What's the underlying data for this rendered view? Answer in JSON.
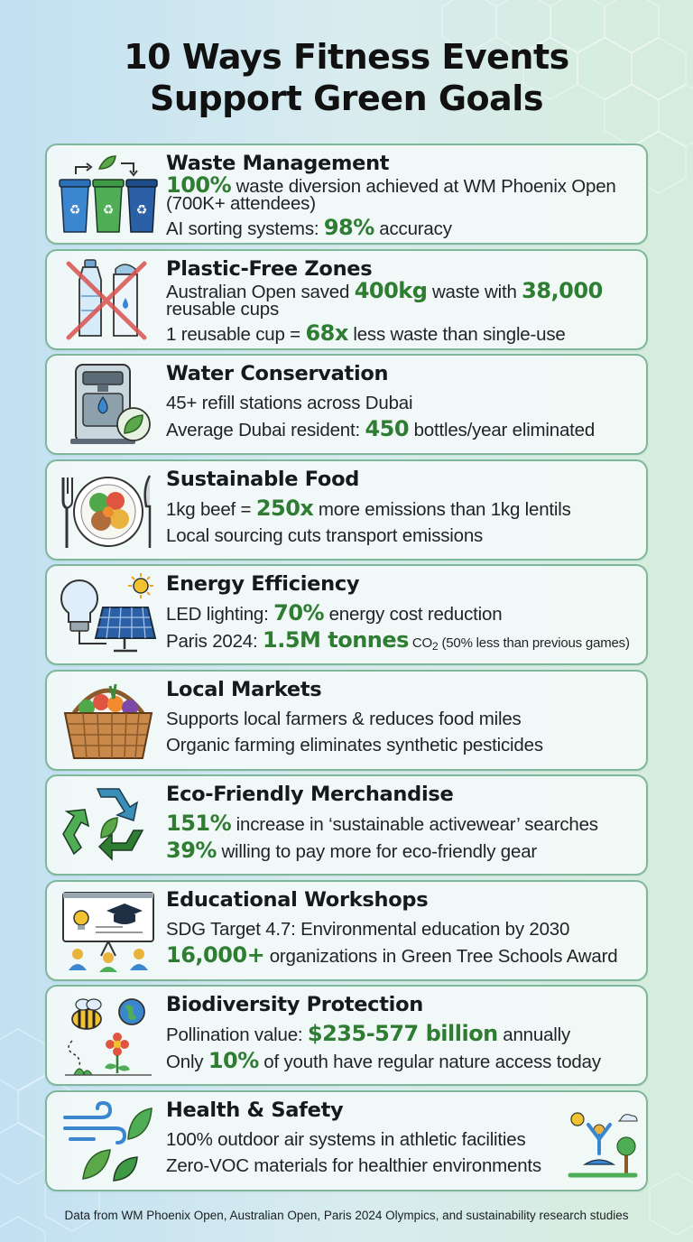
{
  "title_line1": "10 Ways Fitness Events",
  "title_line2": "Support Green Goals",
  "cards": [
    {
      "title": "Waste Management",
      "icon": "recycling-bins-icon",
      "l1_hl": "100%",
      "l1_rest": " waste diversion achieved at WM Phoenix Open (700K+ attendees)",
      "l2_pre": "AI sorting systems: ",
      "l2_hl": "98%",
      "l2_post": " accuracy"
    },
    {
      "title": "Plastic-Free Zones",
      "icon": "no-plastic-bottle-icon",
      "l1_pre": "Australian Open saved ",
      "l1_hl": "400kg",
      "l1_mid": " waste with ",
      "l1_hl2": "38,000",
      "l1_post": " reusable cups",
      "l2_pre": "1 reusable cup = ",
      "l2_hl": "68x",
      "l2_post": " less waste than single-use"
    },
    {
      "title": "Water Conservation",
      "icon": "water-refill-station-icon",
      "l1": "45+ refill stations across Dubai",
      "l2_pre": "Average Dubai resident: ",
      "l2_hl": "450",
      "l2_post": " bottles/year eliminated"
    },
    {
      "title": "Sustainable Food",
      "icon": "plate-food-icon",
      "l1_pre": "1kg beef = ",
      "l1_hl": "250x",
      "l1_post": " more emissions than 1kg lentils",
      "l2": "Local sourcing cuts transport emissions"
    },
    {
      "title": "Energy Efficiency",
      "icon": "led-solar-panel-icon",
      "l1_pre": "LED lighting: ",
      "l1_hl": "70%",
      "l1_post": " energy cost reduction",
      "l2_pre": "Paris 2024: ",
      "l2_hl": "1.5M tonnes",
      "l2_co": " CO",
      "l2_sub": "2",
      "l2_note": " (50% less than previous games)"
    },
    {
      "title": "Local Markets",
      "icon": "vegetable-basket-icon",
      "l1": "Supports local farmers & reduces food miles",
      "l2": "Organic farming eliminates synthetic pesticides"
    },
    {
      "title": "Eco-Friendly Merchandise",
      "icon": "recycle-arrows-icon",
      "l1_hl": "151%",
      "l1_rest": " increase in ‘sustainable activewear’ searches",
      "l2_hl": "39%",
      "l2_rest": " willing to pay more for eco-friendly gear"
    },
    {
      "title": "Educational Workshops",
      "icon": "presentation-board-icon",
      "l1": "SDG Target 4.7: Environmental education by 2030",
      "l2_hl": "16,000+",
      "l2_rest": " organizations in Green Tree Schools Award"
    },
    {
      "title": "Biodiversity Protection",
      "icon": "bee-flower-globe-icon",
      "l1_pre": "Pollination value: ",
      "l1_hl": "$235-577 billion",
      "l1_post": " annually",
      "l2_pre": "Only ",
      "l2_hl": "10%",
      "l2_post": " of youth have regular nature access today"
    },
    {
      "title": "Health & Safety",
      "icon": "wind-leaves-icon",
      "extra_icon": "yoga-outdoor-icon",
      "l1": "100% outdoor air systems in athletic facilities",
      "l2": "Zero-VOC materials for healthier environments"
    }
  ],
  "footer": "Data from WM Phoenix Open, Australian Open, Paris 2024 Olympics, and sustainability research studies",
  "colors": {
    "highlight": "#2f7d32",
    "card_border": "#7fb79a",
    "title": "#111111"
  }
}
